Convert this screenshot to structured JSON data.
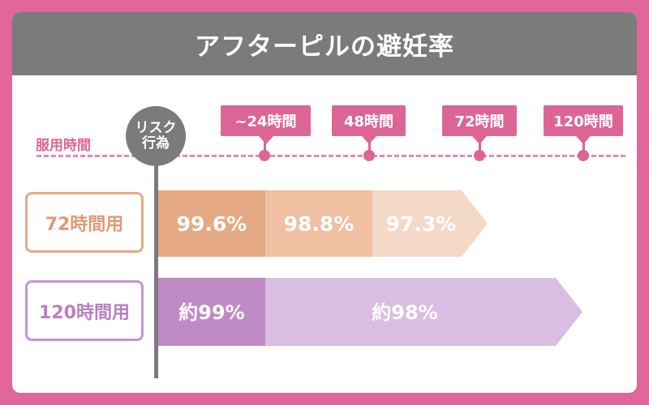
{
  "title": "アフターピルの避妊率",
  "time_axis_label": "服用時間",
  "risk_label_line1": "リスク",
  "risk_label_line2": "行為",
  "markers": [
    "~24時間",
    "48時間",
    "72時間",
    "120時間"
  ],
  "colors": {
    "background": "#e0669b",
    "title_bar": "#7b7b7b",
    "accent_pink": "#dd6596",
    "pill72_seg1": "#e5aa83",
    "pill72_seg2": "#f0c0a2",
    "pill72_seg3": "#f5d9c8",
    "pill120_seg1": "#bf8ac6",
    "pill120_seg2": "#dabde3"
  },
  "chart_data": {
    "type": "bar",
    "title": "アフターピルの避妊率",
    "categories": [
      "~24時間",
      "48時間",
      "72時間",
      "120時間"
    ],
    "series": [
      {
        "name": "72時間用",
        "segments": [
          {
            "to": "~24時間",
            "label": "99.6%",
            "value": 99.6
          },
          {
            "to": "48時間",
            "label": "98.8%",
            "value": 98.8
          },
          {
            "to": "72時間",
            "label": "97.3%",
            "value": 97.3
          }
        ]
      },
      {
        "name": "120時間用",
        "segments": [
          {
            "to": "~24時間",
            "label": "約99%",
            "value": 99
          },
          {
            "to": "120時間",
            "label": "約98%",
            "value": 98
          }
        ]
      }
    ]
  }
}
